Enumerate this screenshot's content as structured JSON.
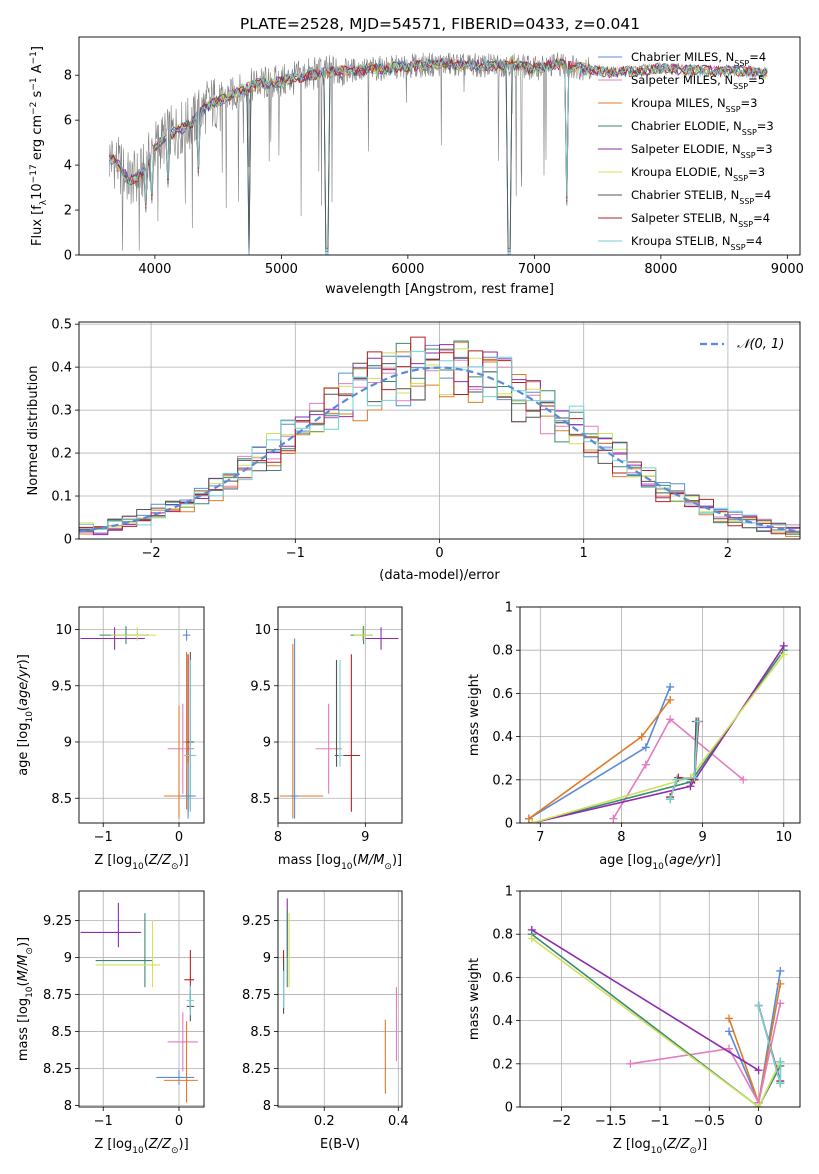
{
  "figure": {
    "title": "PLATE=2528, MJD=54571, FIBERID=0433, z=0.041"
  },
  "colors": {
    "chabrier_miles": "#5b8bd6",
    "salpeter_miles": "#e37cc2",
    "kroupa_miles": "#e07b28",
    "chabrier_elodie": "#3a8a72",
    "salpeter_elodie": "#8e2bb0",
    "kroupa_elodie": "#cfe05a",
    "chabrier_stelib": "#555555",
    "salpeter_stelib": "#b22222",
    "kroupa_stelib": "#6fd3d8",
    "data_gray": "#808080",
    "normal_curve": "#5b8bd6"
  },
  "chart_data": [
    {
      "id": "spectrum",
      "type": "line",
      "title": "PLATE=2528, MJD=54571, FIBERID=0433, z=0.041",
      "xlabel": "wavelength [Angstrom, rest frame]",
      "ylabel": "Flux [fλ10⁻¹⁷ erg cm⁻² s⁻¹ A⁻¹]",
      "xlim": [
        3400,
        9100
      ],
      "ylim": [
        0,
        9.7
      ],
      "xticks": [
        4000,
        5000,
        6000,
        7000,
        8000,
        9000
      ],
      "yticks": [
        0,
        2,
        4,
        6,
        8
      ],
      "legend_position": "top-right",
      "legend": [
        {
          "name": "Chabrier MILES, N",
          "sub": "SSP",
          "tail": "=4"
        },
        {
          "name": "Salpeter MILES, N",
          "sub": "SSP",
          "tail": "=5"
        },
        {
          "name": "Kroupa MILES, N",
          "sub": "SSP",
          "tail": "=3"
        },
        {
          "name": "Chabrier ELODIE, N",
          "sub": "SSP",
          "tail": "=3"
        },
        {
          "name": "Salpeter ELODIE, N",
          "sub": "SSP",
          "tail": "=3"
        },
        {
          "name": "Kroupa ELODIE, N",
          "sub": "SSP",
          "tail": "=3"
        },
        {
          "name": "Chabrier STELIB, N",
          "sub": "SSP",
          "tail": "=4"
        },
        {
          "name": "Salpeter STELIB, N",
          "sub": "SSP",
          "tail": "=4"
        },
        {
          "name": "Kroupa STELIB, N",
          "sub": "SSP",
          "tail": "=4"
        }
      ],
      "continuum": {
        "x": [
          3650,
          3700,
          3800,
          3900,
          4000,
          4100,
          4200,
          4300,
          4400,
          4600,
          4800,
          5000,
          5200,
          5500,
          5800,
          6000,
          6300,
          6600,
          6800,
          7000,
          7200,
          7400,
          7600,
          7800,
          8000,
          8300,
          8600,
          8800
        ],
        "y": [
          4.3,
          4.1,
          3.3,
          3.6,
          4.8,
          5.3,
          5.6,
          5.9,
          6.6,
          7.1,
          7.6,
          7.7,
          8.0,
          8.2,
          8.3,
          8.4,
          8.5,
          8.4,
          8.5,
          8.3,
          8.5,
          8.3,
          8.1,
          8.2,
          8.3,
          8.2,
          8.2,
          8.1
        ]
      },
      "deep_features": [
        {
          "x": 3930,
          "y": 1.9
        },
        {
          "x": 3970,
          "y": 2.3
        },
        {
          "x": 4100,
          "y": 3.0
        },
        {
          "x": 4340,
          "y": 3.5
        },
        {
          "x": 4750,
          "y": 0.0
        },
        {
          "x": 5360,
          "y": 0.0
        },
        {
          "x": 6800,
          "y": 0.0
        },
        {
          "x": 7250,
          "y": 2.2
        }
      ]
    },
    {
      "id": "residuals",
      "type": "step",
      "xlabel": "(data-model)/error",
      "ylabel": "Normed distribution",
      "xlim": [
        -2.5,
        2.5
      ],
      "ylim": [
        0,
        0.505
      ],
      "xticks": [
        -2,
        -1,
        0,
        1,
        2
      ],
      "yticks": [
        0.0,
        0.1,
        0.2,
        0.3,
        0.4,
        0.5
      ],
      "legend_position": "top-right",
      "curve_label": "𝒩(0, 1)",
      "curve": {
        "mu": 0,
        "sigma": 1
      }
    },
    {
      "id": "age_vs_Z",
      "type": "errorbar",
      "xlabel": "Z [log₁₀(Z/Z⊙)]",
      "ylabel": "age  [log₁₀(age/yr)]",
      "xlim": [
        -1.32,
        0.33
      ],
      "ylim": [
        8.28,
        10.2
      ],
      "xticks": [
        -1,
        0
      ],
      "yticks": [
        8.5,
        9.0,
        9.5,
        10.0
      ],
      "points": [
        {
          "s": "chabrier_miles",
          "x": 0.1,
          "y": 9.95,
          "xerr": [
            0.05,
            0.05
          ],
          "yerr": [
            0.05,
            0.05
          ]
        },
        {
          "s": "chabrier_elodie",
          "x": -0.7,
          "y": 9.95,
          "xerr": [
            0.35,
            0.3
          ],
          "yerr": [
            0.08,
            0.08
          ]
        },
        {
          "s": "salpeter_elodie",
          "x": -0.85,
          "y": 9.92,
          "xerr": [
            0.45,
            0.4
          ],
          "yerr": [
            0.1,
            0.1
          ]
        },
        {
          "s": "kroupa_elodie",
          "x": -0.55,
          "y": 9.95,
          "xerr": [
            0.35,
            0.25
          ],
          "yerr": [
            0.05,
            0.07
          ]
        },
        {
          "s": "salpeter_miles",
          "x": 0.05,
          "y": 8.94,
          "xerr": [
            0.2,
            0.15
          ],
          "yerr": [
            0.4,
            0.4
          ]
        },
        {
          "s": "kroupa_miles",
          "x": 0.0,
          "y": 8.52,
          "xerr": [
            0.2,
            0.15
          ],
          "yerr": [
            0.2,
            0.8
          ]
        },
        {
          "s": "kroupa_miles",
          "x": 0.1,
          "y": 9.0,
          "xerr": [
            0.05,
            0.05
          ],
          "yerr": [
            0.6,
            0.8
          ]
        },
        {
          "s": "chabrier_stelib",
          "x": 0.15,
          "y": 9.0,
          "xerr": [
            0.05,
            0.05
          ],
          "yerr": [
            0.6,
            0.8
          ]
        },
        {
          "s": "salpeter_stelib",
          "x": 0.12,
          "y": 8.88,
          "xerr": [
            0.05,
            0.08
          ],
          "yerr": [
            0.5,
            0.9
          ]
        },
        {
          "s": "kroupa_stelib",
          "x": 0.15,
          "y": 8.88,
          "xerr": [
            0.08,
            0.08
          ],
          "yerr": [
            0.5,
            0.85
          ]
        },
        {
          "s": "chabrier_miles",
          "x": 0.12,
          "y": 8.52,
          "xerr": [
            0.1,
            0.1
          ],
          "yerr": [
            0.2,
            0.3
          ]
        }
      ]
    },
    {
      "id": "age_vs_mass",
      "type": "errorbar",
      "xlabel": "mass [log₁₀(M/M⊙)]",
      "ylabel": "",
      "xlim": [
        8.0,
        9.42
      ],
      "ylim": [
        8.28,
        10.2
      ],
      "xticks": [
        8,
        9
      ],
      "yticks": [
        8.5,
        9.0,
        9.5,
        10.0
      ],
      "points": [
        {
          "s": "chabrier_elodie",
          "x": 8.98,
          "y": 9.95,
          "xerr": [
            0.15,
            0.1
          ],
          "yerr": [
            0.08,
            0.08
          ]
        },
        {
          "s": "kroupa_elodie",
          "x": 8.97,
          "y": 9.95,
          "xerr": [
            0.1,
            0.1
          ],
          "yerr": [
            0.05,
            0.07
          ]
        },
        {
          "s": "salpeter_elodie",
          "x": 9.18,
          "y": 9.92,
          "xerr": [
            0.18,
            0.2
          ],
          "yerr": [
            0.1,
            0.1
          ]
        },
        {
          "s": "salpeter_miles",
          "x": 8.58,
          "y": 8.94,
          "xerr": [
            0.15,
            0.15
          ],
          "yerr": [
            0.4,
            0.4
          ]
        },
        {
          "s": "kroupa_miles",
          "x": 8.17,
          "y": 8.52,
          "xerr": [
            0.15,
            0.35
          ],
          "yerr": [
            0.2,
            1.35
          ]
        },
        {
          "s": "chabrier_miles",
          "x": 8.19,
          "y": 8.52,
          "xerr": [
            0.05,
            0.05
          ],
          "yerr": [
            0.2,
            1.4
          ]
        },
        {
          "s": "salpeter_stelib",
          "x": 8.84,
          "y": 8.88,
          "xerr": [
            0.15,
            0.1
          ],
          "yerr": [
            0.5,
            0.9
          ]
        },
        {
          "s": "chabrier_stelib",
          "x": 8.67,
          "y": 8.88,
          "xerr": [
            0.02,
            0.02
          ],
          "yerr": [
            0.1,
            0.85
          ]
        },
        {
          "s": "kroupa_stelib",
          "x": 8.71,
          "y": 8.88,
          "xerr": [
            0.02,
            0.04
          ],
          "yerr": [
            0.1,
            0.85
          ]
        }
      ]
    },
    {
      "id": "weight_vs_age",
      "type": "line",
      "xlabel": "age  [log₁₀(age/yr)]",
      "ylabel": "mass weight",
      "xlim": [
        6.75,
        10.2
      ],
      "ylim": [
        0,
        1.0
      ],
      "xticks": [
        7,
        8,
        9,
        10
      ],
      "yticks": [
        0.0,
        0.2,
        0.4,
        0.6,
        0.8,
        1.0
      ],
      "series": [
        {
          "s": "chabrier_miles",
          "x": [
            6.86,
            8.3,
            8.6
          ],
          "y": [
            0.02,
            0.35,
            0.63
          ]
        },
        {
          "s": "kroupa_miles",
          "x": [
            6.86,
            8.25,
            8.6
          ],
          "y": [
            0.02,
            0.4,
            0.57
          ]
        },
        {
          "s": "salpeter_miles",
          "x": [
            7.9,
            8.3,
            8.6,
            9.5
          ],
          "y": [
            0.02,
            0.27,
            0.48,
            0.2
          ]
        },
        {
          "s": "chabrier_elodie",
          "x": [
            6.9,
            8.85,
            10.0
          ],
          "y": [
            0.0,
            0.19,
            0.8
          ]
        },
        {
          "s": "salpeter_elodie",
          "x": [
            6.9,
            8.85,
            10.0
          ],
          "y": [
            0.0,
            0.17,
            0.82
          ]
        },
        {
          "s": "kroupa_elodie",
          "x": [
            6.9,
            8.85,
            10.0
          ],
          "y": [
            0.0,
            0.21,
            0.78
          ]
        },
        {
          "s": "chabrier_stelib",
          "x": [
            8.6,
            8.68,
            8.9,
            8.92
          ],
          "y": [
            0.11,
            0.2,
            0.21,
            0.47
          ]
        },
        {
          "s": "salpeter_stelib",
          "x": [
            8.6,
            8.7,
            8.9,
            8.95
          ],
          "y": [
            0.12,
            0.21,
            0.2,
            0.47
          ]
        },
        {
          "s": "kroupa_stelib",
          "x": [
            8.6,
            8.68,
            8.9,
            8.94
          ],
          "y": [
            0.11,
            0.2,
            0.21,
            0.47
          ]
        }
      ]
    },
    {
      "id": "mass_vs_Z",
      "type": "errorbar",
      "xlabel": "Z [log₁₀(Z/Z⊙)]",
      "ylabel": "mass [log₁₀(M/M⊙)]",
      "xlim": [
        -1.32,
        0.33
      ],
      "ylim": [
        7.99,
        9.45
      ],
      "xticks": [
        -1,
        0
      ],
      "yticks": [
        8.0,
        8.25,
        8.5,
        8.75,
        9.0,
        9.25
      ],
      "points": [
        {
          "s": "salpeter_elodie",
          "x": -0.8,
          "y": 9.17,
          "xerr": [
            0.5,
            0.3
          ],
          "yerr": [
            0.1,
            0.2
          ]
        },
        {
          "s": "chabrier_elodie",
          "x": -0.45,
          "y": 8.98,
          "xerr": [
            0.65,
            0.1
          ],
          "yerr": [
            0.18,
            0.32
          ]
        },
        {
          "s": "kroupa_elodie",
          "x": -0.35,
          "y": 8.95,
          "xerr": [
            0.75,
            0.1
          ],
          "yerr": [
            0.15,
            0.3
          ]
        },
        {
          "s": "salpeter_stelib",
          "x": 0.15,
          "y": 8.85,
          "xerr": [
            0.08,
            0.05
          ],
          "yerr": [
            0.2,
            0.2
          ]
        },
        {
          "s": "chabrier_stelib",
          "x": 0.15,
          "y": 8.67,
          "xerr": [
            0.05,
            0.05
          ],
          "yerr": [
            0.1,
            0.1
          ]
        },
        {
          "s": "kroupa_stelib",
          "x": 0.15,
          "y": 8.71,
          "xerr": [
            0.05,
            0.05
          ],
          "yerr": [
            0.1,
            0.1
          ]
        },
        {
          "s": "salpeter_miles",
          "x": 0.05,
          "y": 8.43,
          "xerr": [
            0.2,
            0.2
          ],
          "yerr": [
            0.2,
            0.2
          ]
        },
        {
          "s": "chabrier_miles",
          "x": 0.0,
          "y": 8.19,
          "xerr": [
            0.3,
            0.2
          ],
          "yerr": [
            0.05,
            0.05
          ]
        },
        {
          "s": "kroupa_miles",
          "x": 0.1,
          "y": 8.17,
          "xerr": [
            0.3,
            0.15
          ],
          "yerr": [
            0.15,
            0.4
          ]
        }
      ]
    },
    {
      "id": "mass_vs_EBV",
      "type": "errorbar",
      "xlabel": "E(B-V)",
      "ylabel": "",
      "xlim": [
        0.075,
        0.41
      ],
      "ylim": [
        7.99,
        9.45
      ],
      "xticks": [
        0.2,
        0.4
      ],
      "yticks": [
        8.0,
        8.25,
        8.5,
        8.75,
        9.0,
        9.25
      ],
      "points": [
        {
          "s": "salpeter_elodie",
          "x": 0.1,
          "y": 9.2,
          "xerr": [
            0,
            0
          ],
          "yerr": [
            0.2,
            0.2
          ]
        },
        {
          "s": "kroupa_elodie",
          "x": 0.105,
          "y": 9.0,
          "xerr": [
            0,
            0
          ],
          "yerr": [
            0.2,
            0.3
          ]
        },
        {
          "s": "chabrier_elodie",
          "x": 0.1,
          "y": 9.0,
          "xerr": [
            0,
            0
          ],
          "yerr": [
            0.2,
            0.32
          ]
        },
        {
          "s": "salpeter_stelib",
          "x": 0.09,
          "y": 8.85,
          "xerr": [
            0,
            0
          ],
          "yerr": [
            0.2,
            0.2
          ]
        },
        {
          "s": "chabrier_stelib",
          "x": 0.09,
          "y": 8.67,
          "xerr": [
            0,
            0
          ],
          "yerr": [
            0.05,
            0.3
          ]
        },
        {
          "s": "kroupa_stelib",
          "x": 0.09,
          "y": 8.71,
          "xerr": [
            0,
            0
          ],
          "yerr": [
            0.05,
            0.2
          ]
        },
        {
          "s": "kroupa_miles",
          "x": 0.365,
          "y": 8.33,
          "xerr": [
            0,
            0
          ],
          "yerr": [
            0.25,
            0.25
          ]
        },
        {
          "s": "salpeter_miles",
          "x": 0.395,
          "y": 8.55,
          "xerr": [
            0,
            0
          ],
          "yerr": [
            0.25,
            0.25
          ]
        }
      ]
    },
    {
      "id": "weight_vs_Z",
      "type": "line",
      "xlabel": "Z [log₁₀(Z/Z⊙)]",
      "ylabel": "mass weight",
      "xlim": [
        -2.42,
        0.42
      ],
      "ylim": [
        0,
        1.0
      ],
      "xticks": [
        -2.0,
        -1.5,
        -1.0,
        -0.5,
        0.0
      ],
      "yticks": [
        0.0,
        0.2,
        0.4,
        0.6,
        0.8,
        1.0
      ],
      "series": [
        {
          "s": "chabrier_miles",
          "x": [
            -0.3,
            0.0,
            0.22
          ],
          "y": [
            0.35,
            0.02,
            0.63
          ]
        },
        {
          "s": "kroupa_miles",
          "x": [
            -0.3,
            0.0,
            0.22
          ],
          "y": [
            0.41,
            0.02,
            0.57
          ]
        },
        {
          "s": "salpeter_miles",
          "x": [
            -1.3,
            -0.3,
            0.0,
            0.22
          ],
          "y": [
            0.2,
            0.27,
            0.02,
            0.48
          ]
        },
        {
          "s": "salpeter_elodie",
          "x": [
            -2.3,
            0.0
          ],
          "y": [
            0.82,
            0.17
          ]
        },
        {
          "s": "chabrier_elodie",
          "x": [
            -2.3,
            0.0,
            0.22
          ],
          "y": [
            0.8,
            0.0,
            0.19
          ]
        },
        {
          "s": "kroupa_elodie",
          "x": [
            -2.3,
            0.0,
            0.22
          ],
          "y": [
            0.78,
            0.0,
            0.21
          ]
        },
        {
          "s": "chabrier_stelib",
          "x": [
            0.0,
            0.22,
            0.22
          ],
          "y": [
            0.47,
            0.11,
            0.21
          ]
        },
        {
          "s": "salpeter_stelib",
          "x": [
            0.0,
            0.22
          ],
          "y": [
            0.47,
            0.12
          ]
        },
        {
          "s": "kroupa_stelib",
          "x": [
            0.0,
            0.22,
            0.22
          ],
          "y": [
            0.47,
            0.11,
            0.21
          ]
        }
      ]
    }
  ]
}
